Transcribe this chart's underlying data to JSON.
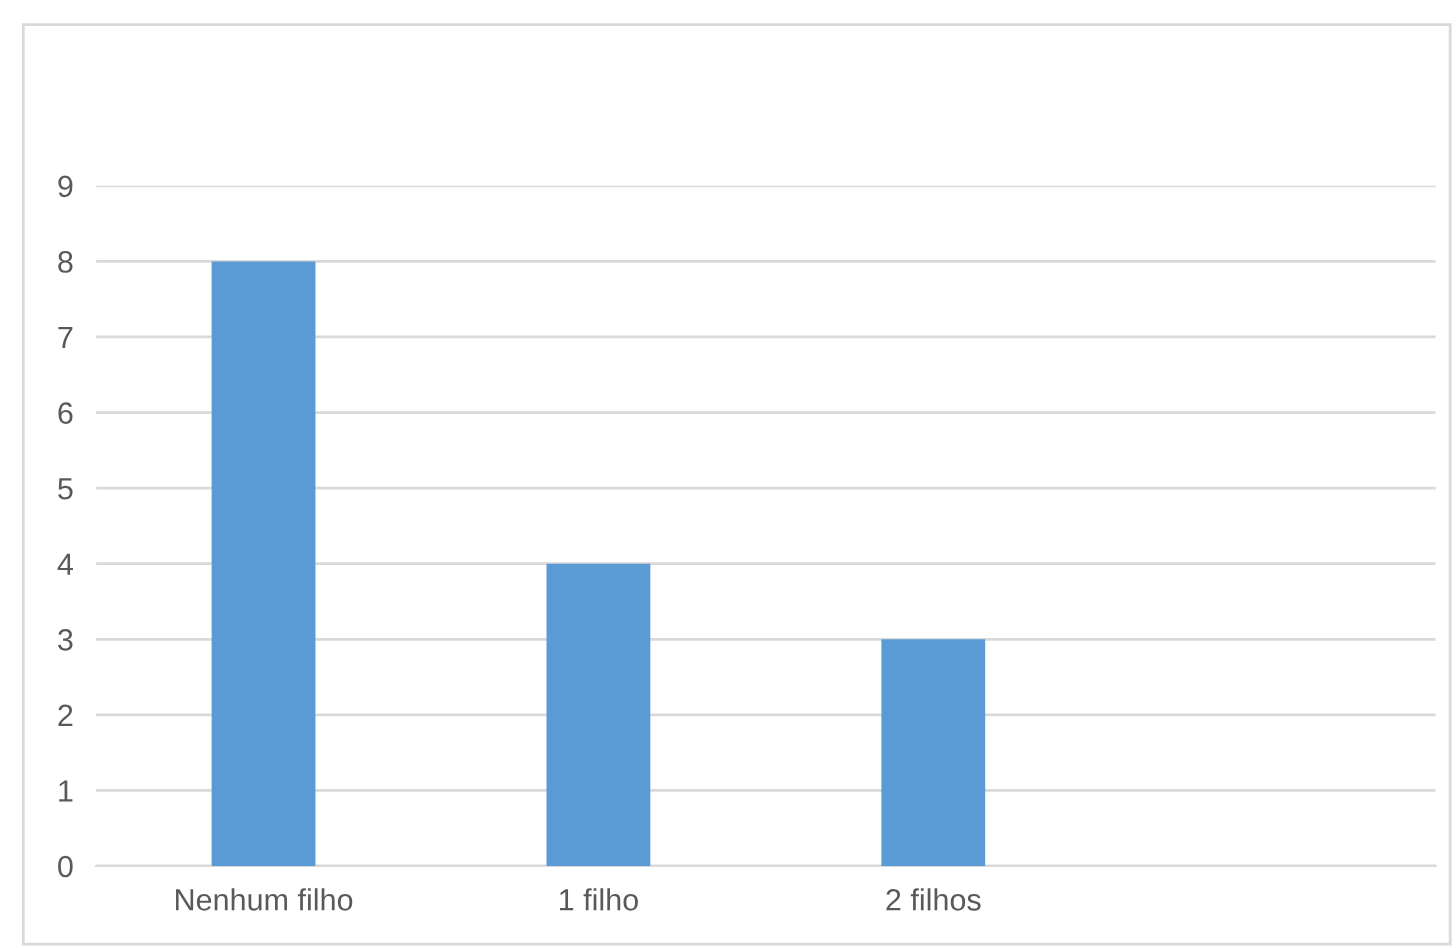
{
  "chart_data": {
    "type": "bar",
    "categories": [
      "Nenhum filho",
      "1 filho",
      "2 filhos",
      null
    ],
    "values": [
      8,
      4,
      3,
      null
    ],
    "color": "#5b9bd5",
    "ylim": [
      0,
      9
    ],
    "yticks": [
      0,
      1,
      2,
      3,
      4,
      5,
      6,
      7,
      8,
      9
    ],
    "grid": "y",
    "legend": false
  }
}
